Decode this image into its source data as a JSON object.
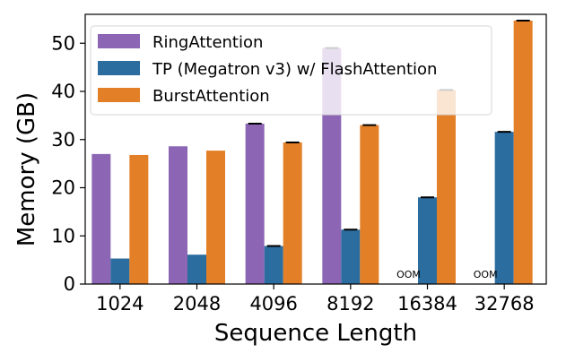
{
  "chart_data": {
    "type": "bar",
    "title": "",
    "xlabel": "Sequence Length",
    "ylabel": "Memory (GB)",
    "ylim": [
      0,
      56
    ],
    "yticks": [
      0,
      10,
      20,
      30,
      40,
      50
    ],
    "categories": [
      "1024",
      "2048",
      "4096",
      "8192",
      "16384",
      "32768"
    ],
    "legend_position": "top-left",
    "grid": false,
    "series": [
      {
        "name": "RingAttention",
        "color": "#8c66b5",
        "values": [
          27.0,
          28.6,
          33.3,
          49.0,
          null,
          null
        ]
      },
      {
        "name": "TP (Megatron v3) w/ FlashAttention",
        "color": "#2b6d9f",
        "values": [
          5.3,
          6.1,
          7.9,
          11.3,
          18.0,
          31.6
        ]
      },
      {
        "name": "BurstAttention",
        "color": "#e37f26",
        "values": [
          26.8,
          27.7,
          29.4,
          33.0,
          40.3,
          54.7
        ]
      }
    ],
    "error_caps": {
      "RingAttention": [
        false,
        false,
        true,
        true,
        false,
        false
      ],
      "TP (Megatron v3) w/ FlashAttention": [
        false,
        false,
        true,
        true,
        true,
        true
      ],
      "BurstAttention": [
        false,
        false,
        true,
        true,
        true,
        true
      ]
    },
    "annotations": [
      {
        "category": "16384",
        "series": "RingAttention",
        "text": "OOM"
      },
      {
        "category": "32768",
        "series": "RingAttention",
        "text": "OOM"
      }
    ]
  }
}
